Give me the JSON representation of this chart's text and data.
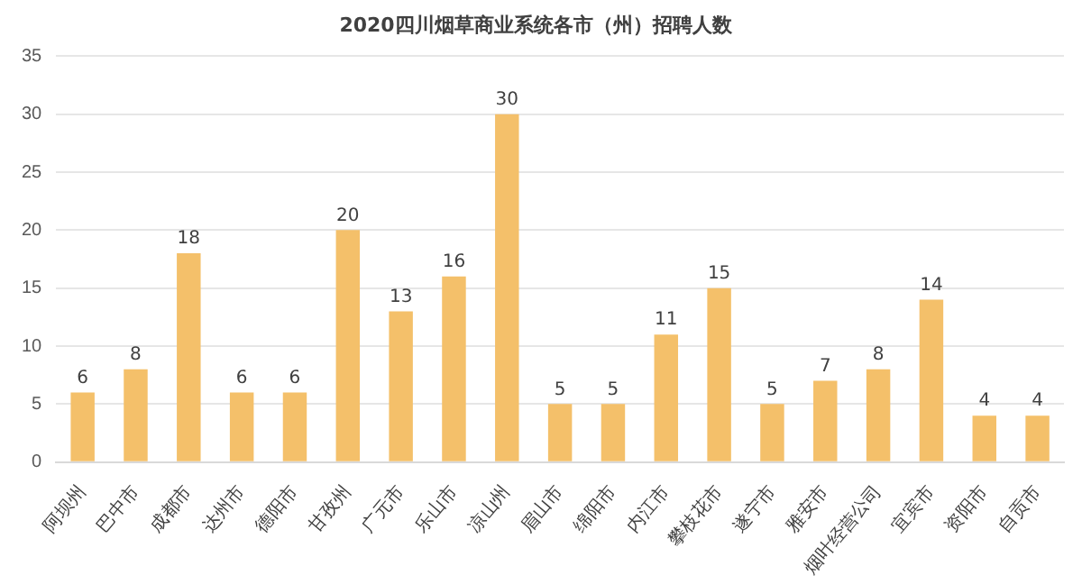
{
  "chart_data": {
    "type": "bar",
    "title": "2020四川烟草商业系统各市（州）招聘人数",
    "categories": [
      "阿坝州",
      "巴中市",
      "成都市",
      "达州市",
      "德阳市",
      "甘孜州",
      "广元市",
      "乐山市",
      "凉山州",
      "眉山市",
      "绵阳市",
      "内江市",
      "攀枝花市",
      "遂宁市",
      "雅安市",
      "烟叶经营公司",
      "宜宾市",
      "资阳市",
      "自贡市"
    ],
    "values": [
      6,
      8,
      18,
      6,
      6,
      20,
      13,
      16,
      30,
      5,
      5,
      11,
      15,
      5,
      7,
      8,
      14,
      4,
      4
    ],
    "color": "#f4c06a",
    "ylim": [
      0,
      35
    ],
    "yticks": [
      0,
      5,
      10,
      15,
      20,
      25,
      30,
      35
    ],
    "grid": "y",
    "data_labels": true,
    "legend": false
  }
}
